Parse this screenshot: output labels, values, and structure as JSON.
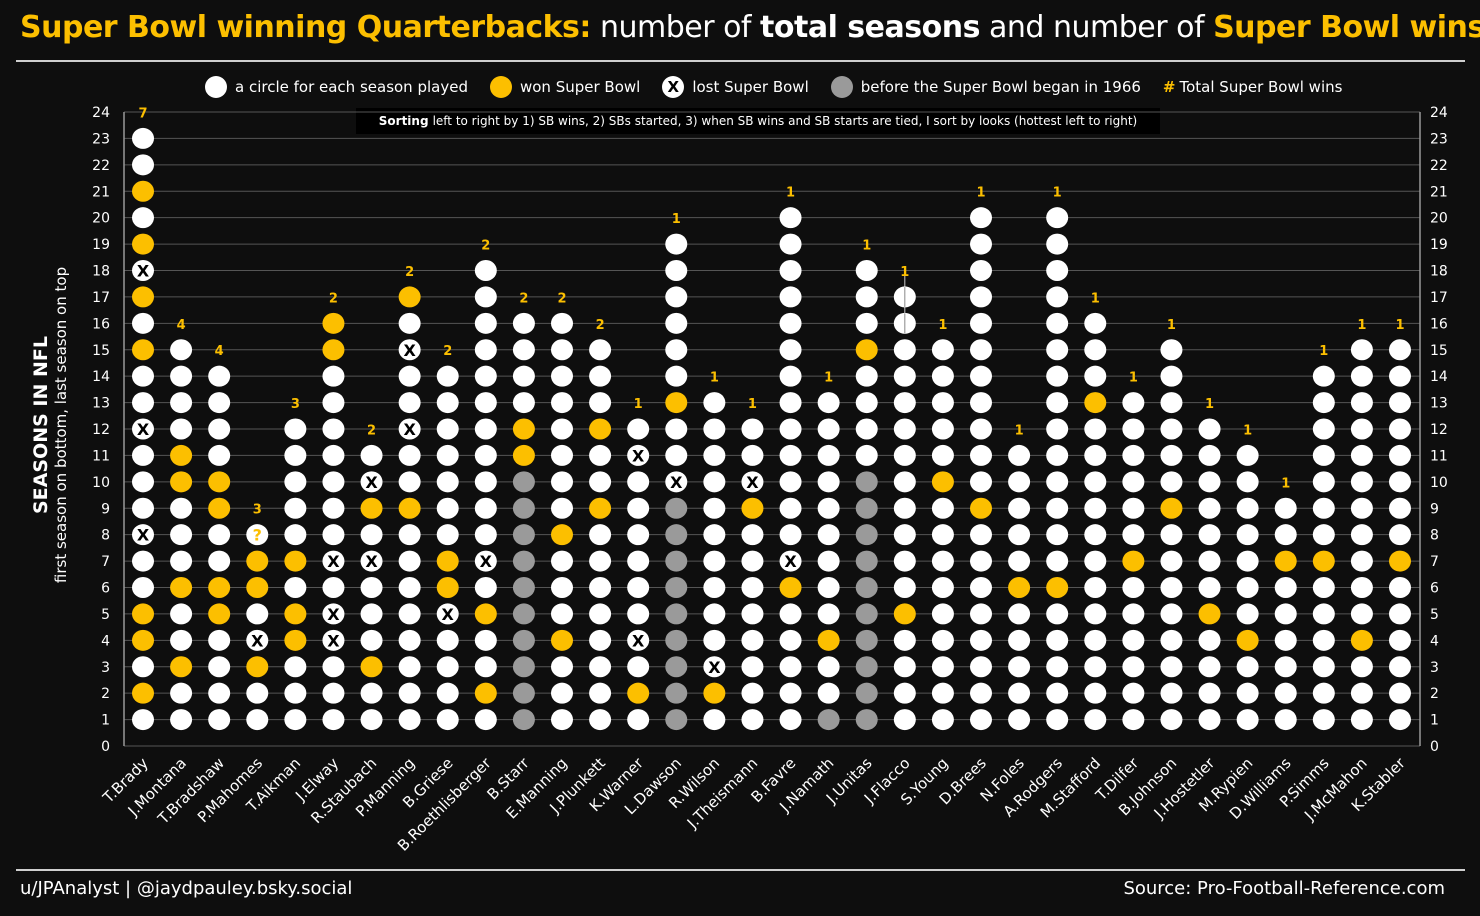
{
  "title": {
    "part1": "Super Bowl winning Quarterbacks:",
    "part2": "number of",
    "part3": "total seasons",
    "part4": "and number of",
    "part5": "Super Bowl wins"
  },
  "legend": {
    "season": "a circle for each season played",
    "won": "won Super Bowl",
    "lost": "lost Super Bowl",
    "lost_marker": "X",
    "pre_sb": "before the Super Bowl began in 1966",
    "total_marker": "#",
    "total": "Total Super Bowl wins"
  },
  "sorting_note": {
    "bold": "Sorting",
    "text": "left to right by 1) SB wins, 2) SBs started, 3) when SB wins and SB starts are tied, I sort by looks (hottest left to right)"
  },
  "colors": {
    "background": "#0e0e0e",
    "season": "#ffffff",
    "won": "#fcbf00",
    "pre_sb": "#9a9a9a",
    "win_count": "#fcbf00",
    "grid": "#555555"
  },
  "chart_data": {
    "type": "scatter",
    "ylabel": "SEASONS IN NFL",
    "ylabel_sub": "first season on bottom, last season on top",
    "ylim": [
      0,
      24
    ],
    "yticks": [
      0,
      1,
      2,
      3,
      4,
      5,
      6,
      7,
      8,
      9,
      10,
      11,
      12,
      13,
      14,
      15,
      16,
      17,
      18,
      19,
      20,
      21,
      22,
      23,
      24
    ],
    "grid": true,
    "lost_marker": "X",
    "pending_marker": "?",
    "quarterbacks": [
      {
        "name": "T.Brady",
        "seasons": 23,
        "sb_wins": 7,
        "won_seasons": [
          2,
          4,
          5,
          15,
          17,
          19,
          21
        ],
        "lost_seasons": [
          8,
          12,
          18
        ],
        "pre_super_bowl_seasons": [],
        "pending_seasons": []
      },
      {
        "name": "J.Montana",
        "seasons": 15,
        "sb_wins": 4,
        "won_seasons": [
          3,
          6,
          10,
          11
        ],
        "lost_seasons": [],
        "pre_super_bowl_seasons": [],
        "pending_seasons": []
      },
      {
        "name": "T.Bradshaw",
        "seasons": 14,
        "sb_wins": 4,
        "won_seasons": [
          5,
          6,
          9,
          10
        ],
        "lost_seasons": [],
        "pre_super_bowl_seasons": [],
        "pending_seasons": []
      },
      {
        "name": "P.Mahomes",
        "seasons": 8,
        "sb_wins": 3,
        "won_seasons": [
          3,
          6,
          7
        ],
        "lost_seasons": [
          4
        ],
        "pre_super_bowl_seasons": [],
        "pending_seasons": [
          8
        ]
      },
      {
        "name": "T.Aikman",
        "seasons": 12,
        "sb_wins": 3,
        "won_seasons": [
          4,
          5,
          7
        ],
        "lost_seasons": [],
        "pre_super_bowl_seasons": [],
        "pending_seasons": []
      },
      {
        "name": "J.Elway",
        "seasons": 16,
        "sb_wins": 2,
        "won_seasons": [
          15,
          16
        ],
        "lost_seasons": [
          4,
          5,
          7
        ],
        "pre_super_bowl_seasons": [],
        "pending_seasons": []
      },
      {
        "name": "R.Staubach",
        "seasons": 11,
        "sb_wins": 2,
        "won_seasons": [
          3,
          9
        ],
        "lost_seasons": [
          7,
          10
        ],
        "pre_super_bowl_seasons": [],
        "pending_seasons": []
      },
      {
        "name": "P.Manning",
        "seasons": 17,
        "sb_wins": 2,
        "won_seasons": [
          9,
          17
        ],
        "lost_seasons": [
          12,
          15
        ],
        "pre_super_bowl_seasons": [],
        "pending_seasons": []
      },
      {
        "name": "B.Griese",
        "seasons": 14,
        "sb_wins": 2,
        "won_seasons": [
          6,
          7
        ],
        "lost_seasons": [
          5
        ],
        "pre_super_bowl_seasons": [],
        "pending_seasons": []
      },
      {
        "name": "B.Roethlisberger",
        "seasons": 18,
        "sb_wins": 2,
        "won_seasons": [
          2,
          5
        ],
        "lost_seasons": [
          7
        ],
        "pre_super_bowl_seasons": [],
        "pending_seasons": []
      },
      {
        "name": "B.Starr",
        "seasons": 16,
        "sb_wins": 2,
        "won_seasons": [
          11,
          12
        ],
        "lost_seasons": [],
        "pre_super_bowl_seasons": [
          1,
          2,
          3,
          4,
          5,
          6,
          7,
          8,
          9,
          10
        ],
        "pending_seasons": []
      },
      {
        "name": "E.Manning",
        "seasons": 16,
        "sb_wins": 2,
        "won_seasons": [
          4,
          8
        ],
        "lost_seasons": [],
        "pre_super_bowl_seasons": [],
        "pending_seasons": []
      },
      {
        "name": "J.Plunkett",
        "seasons": 15,
        "sb_wins": 2,
        "won_seasons": [
          9,
          12
        ],
        "lost_seasons": [],
        "pre_super_bowl_seasons": [],
        "pending_seasons": []
      },
      {
        "name": "K.Warner",
        "seasons": 12,
        "sb_wins": 1,
        "won_seasons": [
          2
        ],
        "lost_seasons": [
          4,
          11
        ],
        "pre_super_bowl_seasons": [],
        "pending_seasons": []
      },
      {
        "name": "L.Dawson",
        "seasons": 19,
        "sb_wins": 1,
        "won_seasons": [
          13
        ],
        "lost_seasons": [
          10
        ],
        "pre_super_bowl_seasons": [
          1,
          2,
          3,
          4,
          5,
          6,
          7,
          8,
          9
        ],
        "pending_seasons": []
      },
      {
        "name": "R.Wilson",
        "seasons": 13,
        "sb_wins": 1,
        "won_seasons": [
          2
        ],
        "lost_seasons": [
          3
        ],
        "pre_super_bowl_seasons": [],
        "pending_seasons": []
      },
      {
        "name": "J.Theismann",
        "seasons": 12,
        "sb_wins": 1,
        "won_seasons": [
          9
        ],
        "lost_seasons": [
          10
        ],
        "pre_super_bowl_seasons": [],
        "pending_seasons": []
      },
      {
        "name": "B.Favre",
        "seasons": 20,
        "sb_wins": 1,
        "won_seasons": [
          6
        ],
        "lost_seasons": [
          7
        ],
        "pre_super_bowl_seasons": [],
        "pending_seasons": []
      },
      {
        "name": "J.Namath",
        "seasons": 13,
        "sb_wins": 1,
        "won_seasons": [
          4
        ],
        "lost_seasons": [],
        "pre_super_bowl_seasons": [
          1
        ],
        "pending_seasons": []
      },
      {
        "name": "J.Unitas",
        "seasons": 18,
        "sb_wins": 1,
        "won_seasons": [
          15
        ],
        "lost_seasons": [],
        "pre_super_bowl_seasons": [
          1,
          2,
          3,
          4,
          5,
          6,
          7,
          8,
          9,
          10
        ],
        "pending_seasons": []
      },
      {
        "name": "J.Flacco",
        "seasons": 17,
        "sb_wins": 1,
        "won_seasons": [
          5
        ],
        "lost_seasons": [],
        "pre_super_bowl_seasons": [],
        "pending_seasons": []
      },
      {
        "name": "S.Young",
        "seasons": 15,
        "sb_wins": 1,
        "won_seasons": [
          10
        ],
        "lost_seasons": [],
        "pre_super_bowl_seasons": [],
        "pending_seasons": []
      },
      {
        "name": "D.Brees",
        "seasons": 20,
        "sb_wins": 1,
        "won_seasons": [
          9
        ],
        "lost_seasons": [],
        "pre_super_bowl_seasons": [],
        "pending_seasons": []
      },
      {
        "name": "N.Foles",
        "seasons": 11,
        "sb_wins": 1,
        "won_seasons": [
          6
        ],
        "lost_seasons": [],
        "pre_super_bowl_seasons": [],
        "pending_seasons": []
      },
      {
        "name": "A.Rodgers",
        "seasons": 20,
        "sb_wins": 1,
        "won_seasons": [
          6
        ],
        "lost_seasons": [],
        "pre_super_bowl_seasons": [],
        "pending_seasons": []
      },
      {
        "name": "M.Stafford",
        "seasons": 16,
        "sb_wins": 1,
        "won_seasons": [
          13
        ],
        "lost_seasons": [],
        "pre_super_bowl_seasons": [],
        "pending_seasons": []
      },
      {
        "name": "T.Dilfer",
        "seasons": 13,
        "sb_wins": 1,
        "won_seasons": [
          7
        ],
        "lost_seasons": [],
        "pre_super_bowl_seasons": [],
        "pending_seasons": []
      },
      {
        "name": "B.Johnson",
        "seasons": 15,
        "sb_wins": 1,
        "won_seasons": [
          9
        ],
        "lost_seasons": [],
        "pre_super_bowl_seasons": [],
        "pending_seasons": []
      },
      {
        "name": "J.Hostetler",
        "seasons": 12,
        "sb_wins": 1,
        "won_seasons": [
          5
        ],
        "lost_seasons": [],
        "pre_super_bowl_seasons": [],
        "pending_seasons": []
      },
      {
        "name": "M.Rypien",
        "seasons": 11,
        "sb_wins": 1,
        "won_seasons": [
          4
        ],
        "lost_seasons": [],
        "pre_super_bowl_seasons": [],
        "pending_seasons": []
      },
      {
        "name": "D.Williams",
        "seasons": 9,
        "sb_wins": 1,
        "won_seasons": [
          7
        ],
        "lost_seasons": [],
        "pre_super_bowl_seasons": [],
        "pending_seasons": []
      },
      {
        "name": "P.Simms",
        "seasons": 14,
        "sb_wins": 1,
        "won_seasons": [
          7
        ],
        "lost_seasons": [],
        "pre_super_bowl_seasons": [],
        "pending_seasons": []
      },
      {
        "name": "J.McMahon",
        "seasons": 15,
        "sb_wins": 1,
        "won_seasons": [
          4
        ],
        "lost_seasons": [],
        "pre_super_bowl_seasons": [],
        "pending_seasons": []
      },
      {
        "name": "K.Stabler",
        "seasons": 15,
        "sb_wins": 1,
        "won_seasons": [
          7
        ],
        "lost_seasons": [],
        "pre_super_bowl_seasons": [],
        "pending_seasons": []
      }
    ]
  },
  "footer": {
    "credit": "u/JPAnalyst  |  @jaydpauley.bsky.social",
    "source": "Source: Pro-Football-Reference.com"
  }
}
